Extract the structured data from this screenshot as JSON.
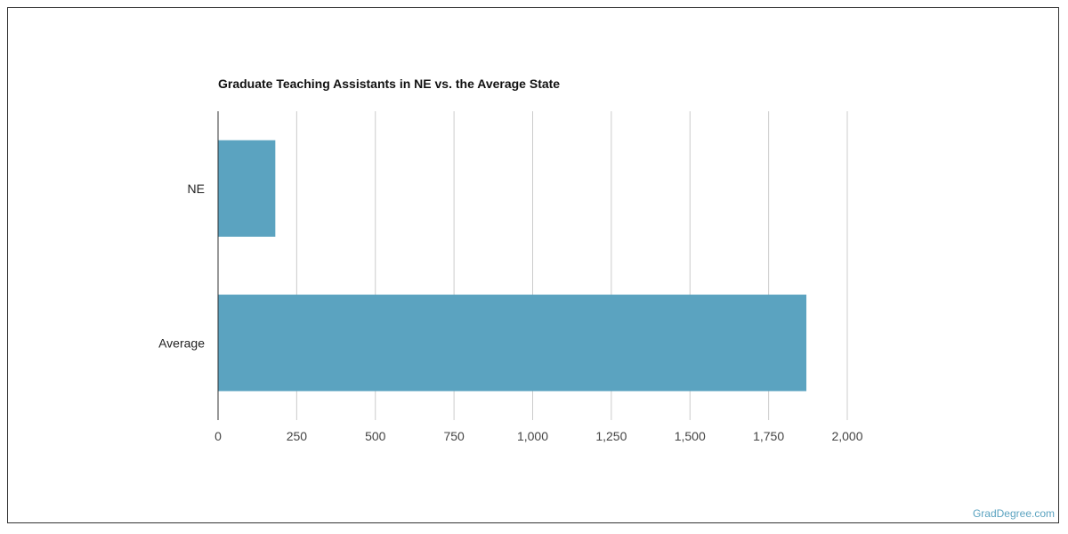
{
  "chart_data": {
    "type": "bar",
    "orientation": "horizontal",
    "title": "Graduate Teaching Assistants in NE vs. the Average State",
    "categories": [
      "NE",
      "Average"
    ],
    "values": [
      182,
      1870
    ],
    "xlim": [
      0,
      2000
    ],
    "xticks": [
      0,
      250,
      500,
      750,
      1000,
      1250,
      1500,
      1750,
      2000
    ],
    "xtick_labels": [
      "0",
      "250",
      "500",
      "750",
      "1,000",
      "1,250",
      "1,500",
      "1,750",
      "2,000"
    ],
    "bar_color": "#5ba3c0",
    "grid": true,
    "legend": "none"
  },
  "watermark": "GradDegree.com"
}
